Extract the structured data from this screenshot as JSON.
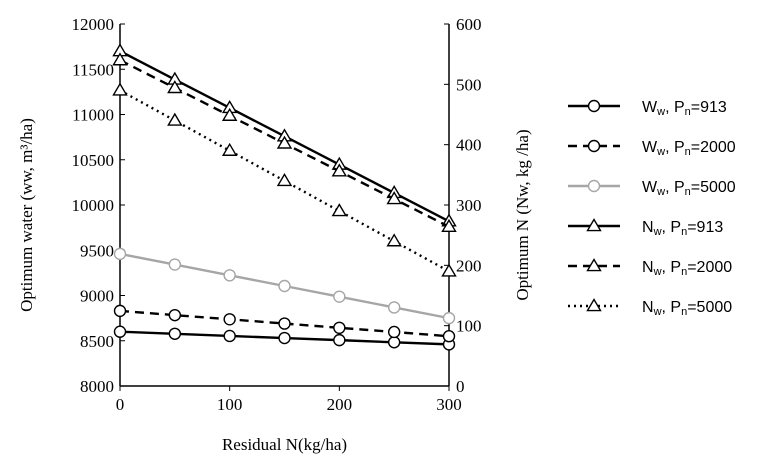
{
  "chart_data": {
    "type": "line",
    "xlabel": "Residual N(kg/ha)",
    "ylabel_left": "Optimum water (ww, m³/ha)",
    "ylabel_right": "Optimum N (Nw, kg /ha)",
    "xlim": [
      0,
      300
    ],
    "ylim_left": [
      8000,
      12000
    ],
    "ylim_right": [
      0,
      600
    ],
    "xticks": [
      "0",
      "100",
      "200",
      "300"
    ],
    "yticks_left": [
      "8000",
      "8500",
      "9000",
      "9500",
      "10000",
      "10500",
      "11000",
      "11500",
      "12000"
    ],
    "yticks_right": [
      "0",
      "100",
      "200",
      "300",
      "400",
      "500",
      "600"
    ],
    "grid": false,
    "legend_position": "right",
    "x": [
      0,
      50,
      100,
      150,
      200,
      250,
      300
    ],
    "series": [
      {
        "name": "Ww, Pn=913",
        "legend_main": "W",
        "legend_sub": "w",
        "legend_rest": ", P",
        "legend_sub2": "n",
        "legend_end": "=913",
        "axis": "left",
        "marker": "circle",
        "color": "#000000",
        "dash": "solid",
        "values": [
          8600,
          8577,
          8553,
          8530,
          8507,
          8483,
          8460
        ]
      },
      {
        "name": "Ww, Pn=2000",
        "legend_main": "W",
        "legend_sub": "w",
        "legend_rest": ", P",
        "legend_sub2": "n",
        "legend_end": "=2000",
        "axis": "left",
        "marker": "circle",
        "color": "#000000",
        "dash": "dashed",
        "values": [
          8830,
          8783,
          8737,
          8690,
          8643,
          8597,
          8550
        ]
      },
      {
        "name": "Ww, Pn=5000",
        "legend_main": "W",
        "legend_sub": "w",
        "legend_rest": ", P",
        "legend_sub2": "n",
        "legend_end": "=5000",
        "axis": "left",
        "marker": "circle",
        "color": "#a6a6a6",
        "dash": "solid",
        "values": [
          9460,
          9342,
          9223,
          9105,
          8987,
          8868,
          8750
        ]
      },
      {
        "name": "Nw, Pn=913",
        "legend_main": "N",
        "legend_sub": "w",
        "legend_rest": ", P",
        "legend_sub2": "n",
        "legend_end": "=913",
        "axis": "right",
        "marker": "triangle",
        "color": "#000000",
        "dash": "solid",
        "values": [
          555,
          508,
          461,
          414,
          367,
          320,
          273
        ]
      },
      {
        "name": "Nw, Pn=2000",
        "legend_main": "N",
        "legend_sub": "w",
        "legend_rest": ", P",
        "legend_sub2": "n",
        "legend_end": "=2000",
        "axis": "right",
        "marker": "triangle",
        "color": "#000000",
        "dash": "dashed",
        "values": [
          540,
          494,
          448,
          402,
          356,
          310,
          264
        ]
      },
      {
        "name": "Nw, Pn=5000",
        "legend_main": "N",
        "legend_sub": "w",
        "legend_rest": ", P",
        "legend_sub2": "n",
        "legend_end": "=5000",
        "axis": "right",
        "marker": "triangle",
        "color": "#000000",
        "dash": "dotted",
        "values": [
          490,
          440,
          390,
          340,
          290,
          240,
          190
        ]
      }
    ]
  }
}
